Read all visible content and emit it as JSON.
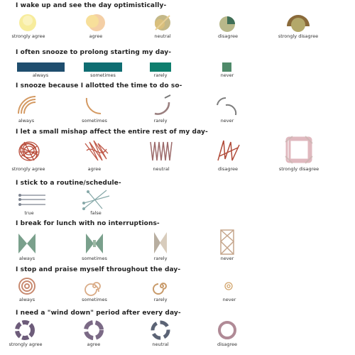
{
  "questions": [
    {
      "text": "I wake up and see the day optimistically-",
      "options": [
        "strongly agree",
        "agree",
        "neutral",
        "disagree",
        "strongly disagree"
      ]
    },
    {
      "text": "I often snooze to prolong starting my day-",
      "options": [
        "always",
        "sometimes",
        "rarely",
        "never"
      ]
    },
    {
      "text": "I snooze because I allotted the time to do so-",
      "options": [
        "always",
        "sometimes",
        "rarely",
        "never"
      ]
    },
    {
      "text": "I let a small mishap affect the entire rest of my day-",
      "options": [
        "strongly agree",
        "agree",
        "neutral",
        "disagree",
        "strongly disagree"
      ]
    },
    {
      "text": "I stick to a routine/schedule-",
      "options": [
        "true",
        "false"
      ]
    },
    {
      "text": "I break for lunch with no interruptions-",
      "options": [
        "always",
        "sometimes",
        "rarely",
        "never"
      ]
    },
    {
      "text": "I stop and praise myself throughout the day-",
      "options": [
        "always",
        "sometimes",
        "rarely",
        "never"
      ]
    },
    {
      "text": "I need a \"wind down\" period after every day-",
      "options": [
        "strongly agree",
        "agree",
        "neutral",
        "disagree"
      ]
    }
  ],
  "colors": {
    "pale_yellow": "#f7ec9c",
    "peach": "#f4cfa6",
    "khaki": "#c4b888",
    "sage": "#9fae86",
    "dark_olive": "#8a6a3a",
    "navy_teal": "#1f4e6e",
    "teal": "#0f6d72",
    "green_teal": "#0f7e6e",
    "muted_green": "#4f8a6a",
    "tan": "#d49a63",
    "grey": "#7d7d7d",
    "rust": "#b84a38",
    "mauve": "#9c6a6a",
    "seafoam": "#86a892",
    "taupe": "#b8aea0",
    "purple_grey": "#6d5c7a",
    "slate": "#5b6375",
    "dusty_rose": "#b08a96"
  }
}
